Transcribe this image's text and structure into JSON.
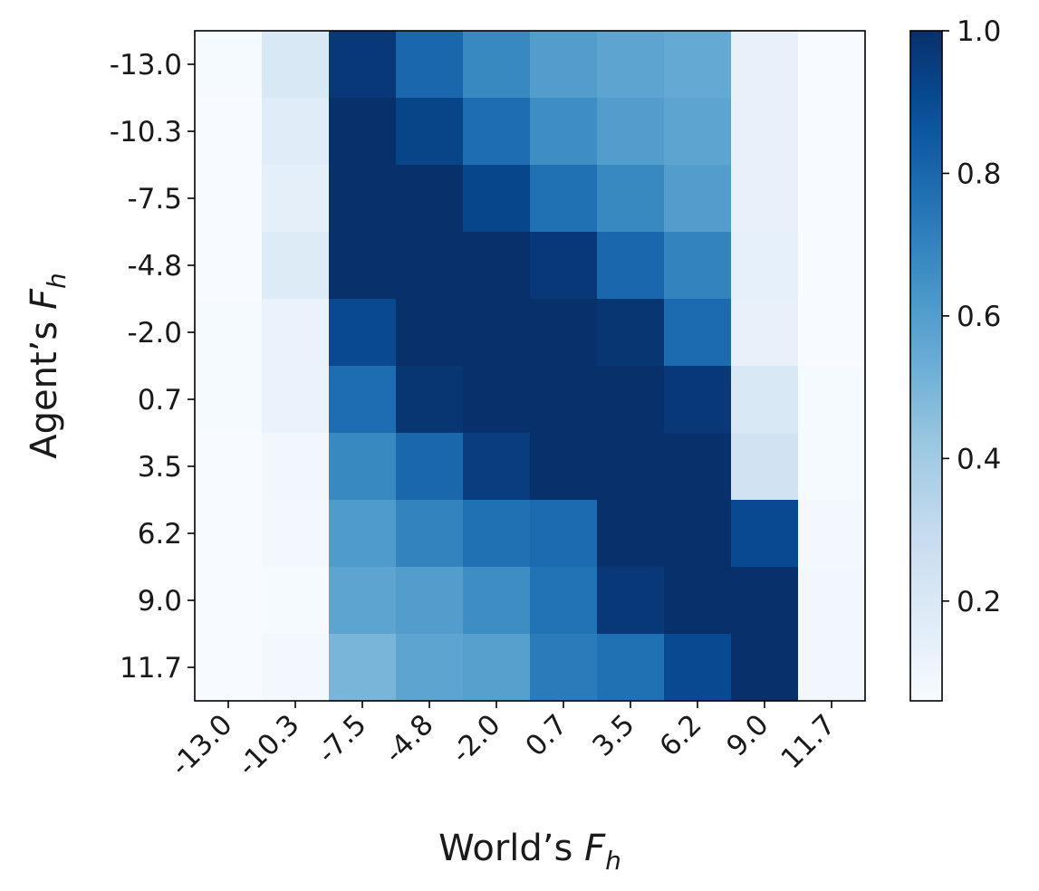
{
  "chart_data": {
    "type": "heatmap",
    "title": "",
    "colormap": "Blues",
    "x_categories": [
      "-13.0",
      "-10.3",
      "-7.5",
      "-4.8",
      "-2.0",
      "0.7",
      "3.5",
      "6.2",
      "9.0",
      "11.7"
    ],
    "y_categories": [
      "-13.0",
      "-10.3",
      "-7.5",
      "-4.8",
      "-2.0",
      "0.7",
      "3.5",
      "6.2",
      "9.0",
      "11.7"
    ],
    "xlabel": {
      "prefix": "World’s ",
      "symbol": "F",
      "subscript": "h"
    },
    "ylabel": {
      "prefix": "Agent’s ",
      "symbol": "F",
      "subscript": "h"
    },
    "values": [
      [
        0.07,
        0.2,
        0.97,
        0.8,
        0.68,
        0.6,
        0.57,
        0.55,
        0.13,
        0.06
      ],
      [
        0.06,
        0.17,
        1.0,
        0.93,
        0.78,
        0.66,
        0.6,
        0.57,
        0.13,
        0.05
      ],
      [
        0.06,
        0.15,
        1.0,
        1.0,
        0.92,
        0.77,
        0.68,
        0.6,
        0.13,
        0.05
      ],
      [
        0.06,
        0.18,
        1.0,
        1.0,
        1.0,
        0.97,
        0.8,
        0.7,
        0.14,
        0.05
      ],
      [
        0.07,
        0.12,
        0.91,
        1.0,
        1.0,
        1.0,
        0.98,
        0.79,
        0.13,
        0.06
      ],
      [
        0.07,
        0.12,
        0.78,
        0.98,
        1.0,
        1.0,
        1.0,
        0.97,
        0.2,
        0.07
      ],
      [
        0.06,
        0.09,
        0.68,
        0.8,
        0.95,
        1.0,
        1.0,
        1.0,
        0.24,
        0.07
      ],
      [
        0.06,
        0.08,
        0.61,
        0.7,
        0.77,
        0.79,
        1.0,
        1.0,
        0.91,
        0.08
      ],
      [
        0.06,
        0.07,
        0.57,
        0.6,
        0.66,
        0.76,
        0.97,
        1.0,
        1.0,
        0.09
      ],
      [
        0.05,
        0.08,
        0.5,
        0.57,
        0.59,
        0.73,
        0.77,
        0.91,
        1.0,
        0.09
      ]
    ],
    "colorbar": {
      "range": [
        0.06,
        1.0
      ],
      "ticks": [
        0.2,
        0.4,
        0.6,
        0.8,
        1.0
      ],
      "tick_labels": [
        "0.2",
        "0.4",
        "0.6",
        "0.8",
        "1.0"
      ]
    },
    "grid": false
  }
}
